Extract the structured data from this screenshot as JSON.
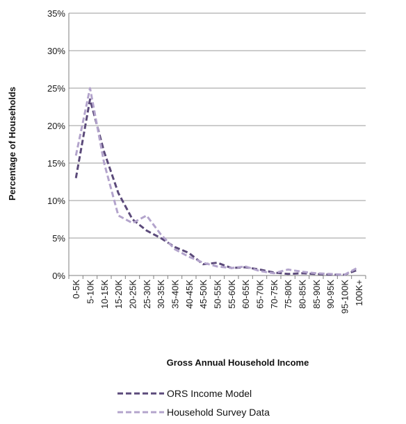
{
  "chart_data": {
    "type": "line",
    "title": "",
    "xlabel": "Gross Annual Household Income",
    "ylabel": "Percentage of Households",
    "categories": [
      "0-5K",
      "5-10K",
      "10-15K",
      "15-20K",
      "20-25K",
      "25-30K",
      "30-35K",
      "35-40K",
      "40-45K",
      "45-50K",
      "50-55K",
      "55-60K",
      "60-65K",
      "65-70K",
      "70-75K",
      "75-80K",
      "80-85K",
      "85-90K",
      "90-95K",
      "95-100K",
      "100K+"
    ],
    "y_ticks": [
      "0%",
      "5%",
      "10%",
      "15%",
      "20%",
      "25%",
      "30%",
      "35%"
    ],
    "ylim": [
      0,
      35
    ],
    "grid": true,
    "legend_position": "bottom",
    "series": [
      {
        "name": "ORS Income Model",
        "color": "#5b4a7a",
        "values": [
          13.0,
          23.5,
          16.5,
          11.0,
          7.5,
          6.0,
          5.0,
          3.8,
          3.0,
          1.5,
          1.7,
          1.0,
          1.1,
          0.8,
          0.4,
          0.2,
          0.3,
          0.2,
          0.1,
          0.1,
          0.8
        ]
      },
      {
        "name": "Household Survey Data",
        "color": "#b3a4cc",
        "values": [
          16.0,
          25.0,
          15.0,
          8.0,
          7.0,
          8.0,
          5.5,
          3.5,
          2.5,
          1.7,
          1.2,
          1.0,
          1.2,
          0.6,
          0.3,
          0.8,
          0.5,
          0.3,
          0.2,
          0.1,
          1.1
        ]
      }
    ]
  }
}
